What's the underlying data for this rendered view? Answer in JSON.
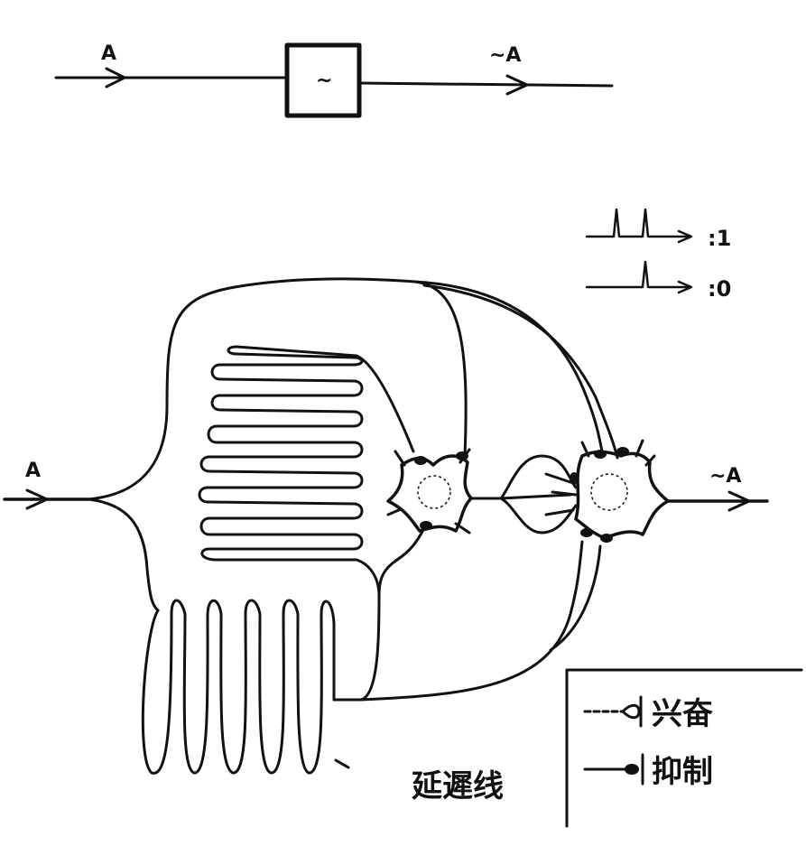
{
  "top_diagram": {
    "input_label": "A",
    "gate_symbol": "~",
    "output_label": "~A"
  },
  "pulse_key": {
    "one_label": ":1",
    "zero_label": ":0"
  },
  "circuit": {
    "input_label": "A",
    "output_label": "~A",
    "delay_line_label": "延遲线"
  },
  "legend": {
    "excite_label": "兴奋",
    "inhibit_label": "抑制"
  }
}
